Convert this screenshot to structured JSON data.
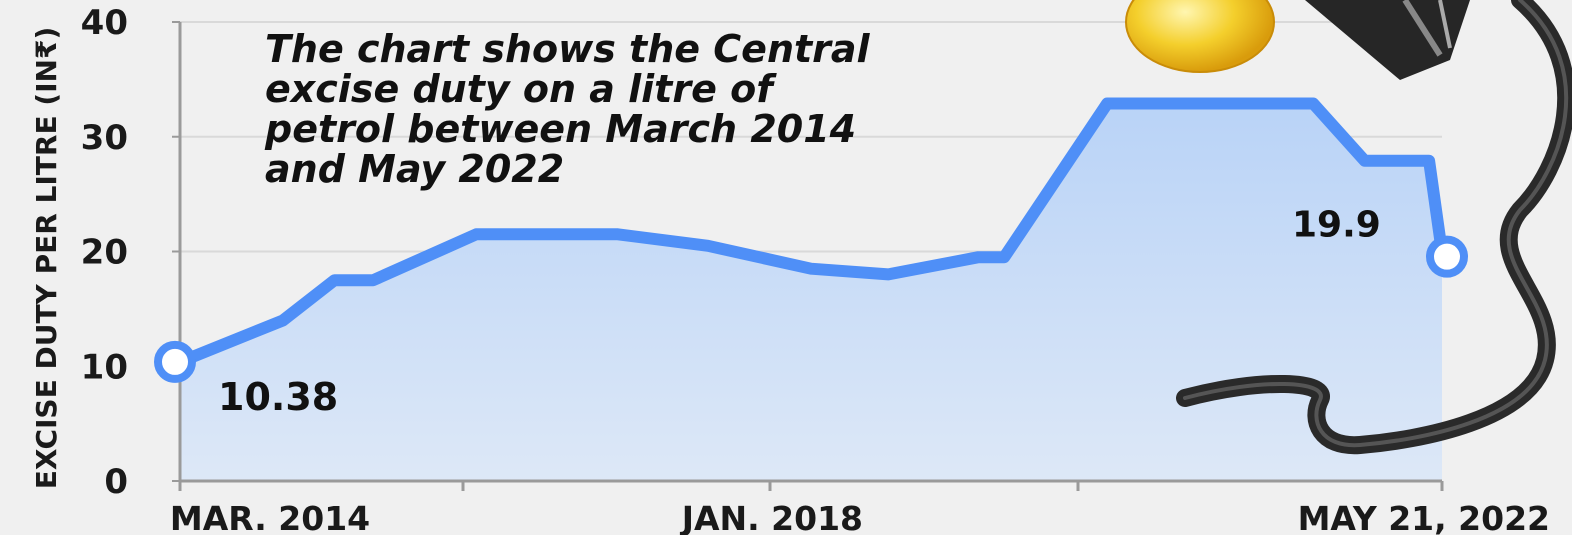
{
  "chart_data": {
    "type": "area",
    "title": "The chart shows the Central excise duty on a litre of petrol between March 2014 and May 2022",
    "title_lines": [
      "The chart shows the Central",
      "excise duty on a litre of",
      "petrol between March 2014",
      "and May 2022"
    ],
    "ylabel": "EXCISE DUTY PER LITRE (IN₹)",
    "xlabel": "",
    "ylim": [
      0,
      40
    ],
    "yticks": [
      0,
      10,
      20,
      30,
      40
    ],
    "xlim": [
      "2014-03",
      "2022-05"
    ],
    "xtick_labels": [
      {
        "date": "2014-03",
        "label": "MAR. 2014"
      },
      {
        "date": "2018-01",
        "label": "JAN. 2018"
      },
      {
        "date": "2022-05",
        "label": "MAY 21, 2022"
      }
    ],
    "grid": true,
    "x": [
      "2014-03",
      "2014-11",
      "2015-03",
      "2015-06",
      "2016-02",
      "2016-03",
      "2016-08",
      "2017-01",
      "2017-08",
      "2018-04",
      "2018-10",
      "2019-05",
      "2019-07",
      "2020-03",
      "2020-05",
      "2021-07",
      "2021-11",
      "2022-02",
      "2022-04",
      "2022-05"
    ],
    "values": [
      10.38,
      14.0,
      17.5,
      17.5,
      21.5,
      21.5,
      21.5,
      21.5,
      20.5,
      18.5,
      18.0,
      19.5,
      19.5,
      32.9,
      32.9,
      32.9,
      27.9,
      27.9,
      27.9,
      19.9
    ],
    "labels": {
      "start": "10.38",
      "end": "19.9"
    },
    "colors": {
      "line": "#4f8ff7",
      "fill_top": "#b9d3f7",
      "fill_bottom": "#dde8f7",
      "marker_fill": "#ffffff"
    }
  }
}
